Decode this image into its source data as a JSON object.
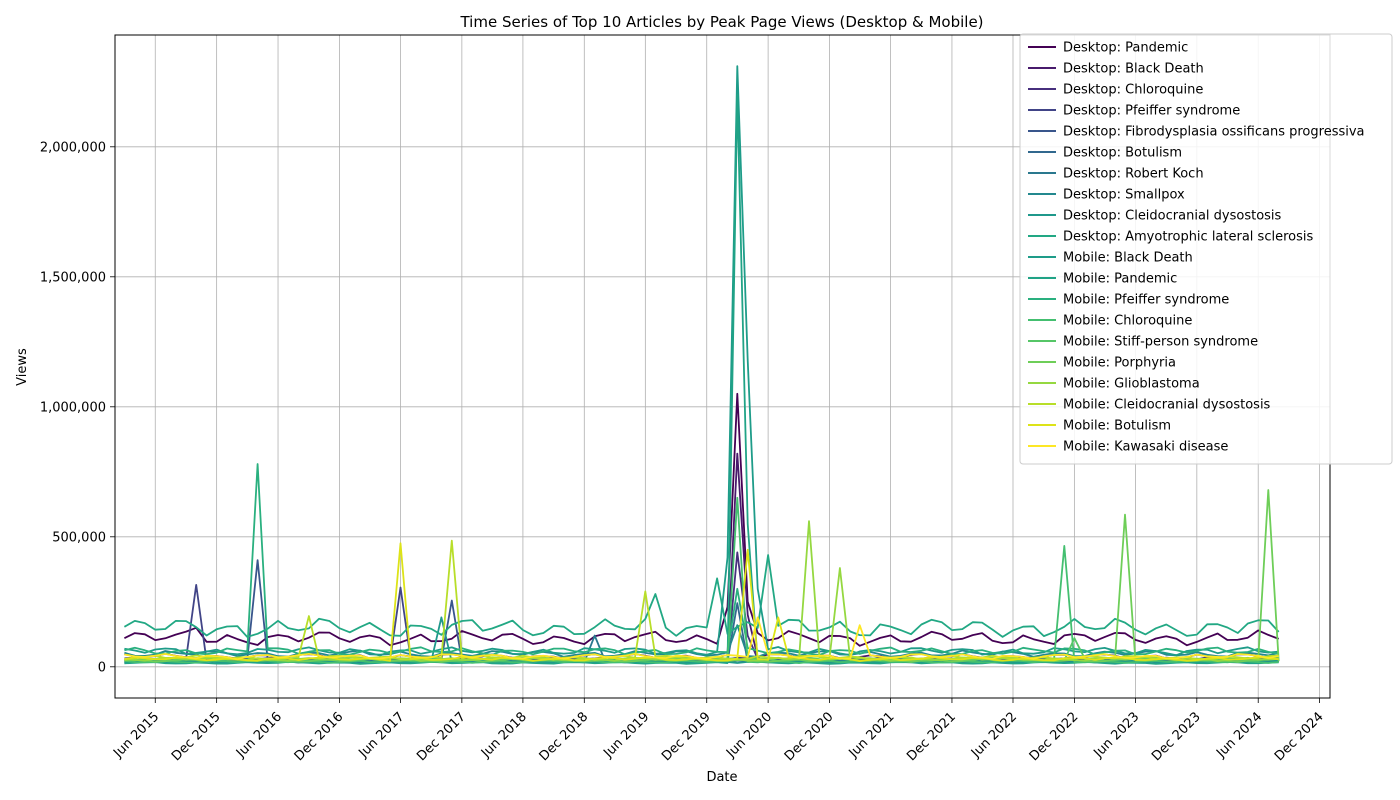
{
  "chart_data": {
    "type": "line",
    "title": "Time Series of Top 10 Articles by Peak Page Views (Desktop & Mobile)",
    "xlabel": "Date",
    "ylabel": "Views",
    "xlim": [
      "2015-02-01",
      "2025-01-01"
    ],
    "ylim": [
      -120000,
      2430000
    ],
    "x_ticks": [
      "2015-06-01",
      "2015-12-01",
      "2016-06-01",
      "2016-12-01",
      "2017-06-01",
      "2017-12-01",
      "2018-06-01",
      "2018-12-01",
      "2019-06-01",
      "2019-12-01",
      "2020-06-01",
      "2020-12-01",
      "2021-06-01",
      "2021-12-01",
      "2022-06-01",
      "2022-12-01",
      "2023-06-01",
      "2023-12-01",
      "2024-06-01",
      "2024-12-01"
    ],
    "x_tick_labels": [
      "Jun 2015",
      "Dec 2015",
      "Jun 2016",
      "Dec 2016",
      "Jun 2017",
      "Dec 2017",
      "Jun 2018",
      "Dec 2018",
      "Jun 2019",
      "Dec 2019",
      "Jun 2020",
      "Dec 2020",
      "Jun 2021",
      "Dec 2021",
      "Jun 2022",
      "Dec 2022",
      "Jun 2023",
      "Dec 2023",
      "Jun 2024",
      "Dec 2024"
    ],
    "y_ticks": [
      0,
      500000,
      1000000,
      1500000,
      2000000
    ],
    "y_tick_labels": [
      "0",
      "500,000",
      "1,000,000",
      "1,500,000",
      "2,000,000"
    ],
    "grid": true,
    "legend_position": "top-right",
    "series": [
      {
        "name": "Desktop: Pandemic",
        "color": "#440154",
        "baseline": 110000,
        "spikes": [
          [
            "2015-10-01",
            150000
          ],
          [
            "2020-02-01",
            230000
          ],
          [
            "2020-03-01",
            1050000
          ],
          [
            "2020-04-01",
            250000
          ],
          [
            "2020-05-01",
            130000
          ]
        ]
      },
      {
        "name": "Desktop: Black Death",
        "color": "#481a6c",
        "baseline": 40000,
        "spikes": [
          [
            "2020-03-01",
            820000
          ],
          [
            "2020-04-01",
            200000
          ]
        ]
      },
      {
        "name": "Desktop: Chloroquine",
        "color": "#472f7d",
        "baseline": 25000,
        "spikes": [
          [
            "2020-03-01",
            440000
          ],
          [
            "2020-04-01",
            120000
          ]
        ]
      },
      {
        "name": "Desktop: Pfeiffer syndrome",
        "color": "#414487",
        "baseline": 30000,
        "spikes": [
          [
            "2015-10-01",
            315000
          ],
          [
            "2017-06-01",
            305000
          ]
        ]
      },
      {
        "name": "Desktop: Fibrodysplasia ossificans progressiva",
        "color": "#39568c",
        "baseline": 25000,
        "spikes": [
          [
            "2016-04-01",
            410000
          ],
          [
            "2017-11-01",
            255000
          ]
        ]
      },
      {
        "name": "Desktop: Botulism",
        "color": "#31688e",
        "baseline": 20000,
        "spikes": [
          [
            "2020-03-01",
            245000
          ]
        ]
      },
      {
        "name": "Desktop: Robert Koch",
        "color": "#2a788e",
        "baseline": 22000,
        "spikes": [
          [
            "2019-01-01",
            120000
          ]
        ]
      },
      {
        "name": "Desktop: Smallpox",
        "color": "#23888e",
        "baseline": 50000,
        "spikes": [
          [
            "2020-03-01",
            160000
          ]
        ]
      },
      {
        "name": "Desktop: Cleidocranial dysostosis",
        "color": "#1f988b",
        "baseline": 20000,
        "spikes": [
          [
            "2017-10-01",
            190000
          ]
        ]
      },
      {
        "name": "Desktop: Amyotrophic lateral sclerosis",
        "color": "#22a884",
        "baseline": 150000,
        "spikes": [
          [
            "2019-07-01",
            280000
          ],
          [
            "2020-01-01",
            340000
          ],
          [
            "2020-06-01",
            430000
          ]
        ]
      },
      {
        "name": "Mobile: Black Death",
        "color": "#1e9c89",
        "baseline": 60000,
        "spikes": [
          [
            "2020-02-01",
            420000
          ],
          [
            "2020-03-01",
            2310000
          ],
          [
            "2020-04-01",
            1180000
          ],
          [
            "2020-05-01",
            300000
          ]
        ]
      },
      {
        "name": "Mobile: Pandemic",
        "color": "#20a386",
        "baseline": 15000,
        "spikes": [
          [
            "2020-03-01",
            2200000
          ],
          [
            "2020-04-01",
            550000
          ]
        ]
      },
      {
        "name": "Mobile: Pfeiffer syndrome",
        "color": "#2ab07f",
        "baseline": 60000,
        "spikes": [
          [
            "2016-04-01",
            780000
          ],
          [
            "2020-03-01",
            300000
          ]
        ]
      },
      {
        "name": "Mobile: Chloroquine",
        "color": "#44bf70",
        "baseline": 20000,
        "spikes": [
          [
            "2020-03-01",
            650000
          ],
          [
            "2022-11-01",
            465000
          ]
        ]
      },
      {
        "name": "Mobile: Stiff-person syndrome",
        "color": "#56c667",
        "baseline": 30000,
        "spikes": [
          [
            "2022-12-01",
            110000
          ]
        ]
      },
      {
        "name": "Mobile: Porphyria",
        "color": "#6ece58",
        "baseline": 25000,
        "spikes": [
          [
            "2023-05-01",
            585000
          ],
          [
            "2024-07-01",
            680000
          ]
        ]
      },
      {
        "name": "Mobile: Glioblastoma",
        "color": "#95d840",
        "baseline": 30000,
        "spikes": [
          [
            "2020-10-01",
            560000
          ],
          [
            "2021-01-01",
            380000
          ]
        ]
      },
      {
        "name": "Mobile: Cleidocranial dysostosis",
        "color": "#b8de29",
        "baseline": 35000,
        "spikes": [
          [
            "2016-09-01",
            195000
          ],
          [
            "2017-11-01",
            485000
          ],
          [
            "2019-06-01",
            290000
          ]
        ]
      },
      {
        "name": "Mobile: Botulism",
        "color": "#dde318",
        "baseline": 30000,
        "spikes": [
          [
            "2017-06-01",
            475000
          ],
          [
            "2020-04-01",
            450000
          ],
          [
            "2020-07-01",
            190000
          ]
        ]
      },
      {
        "name": "Mobile: Kawasaki disease",
        "color": "#fde725",
        "baseline": 40000,
        "spikes": [
          [
            "2020-05-01",
            190000
          ],
          [
            "2021-03-01",
            160000
          ]
        ]
      }
    ]
  }
}
